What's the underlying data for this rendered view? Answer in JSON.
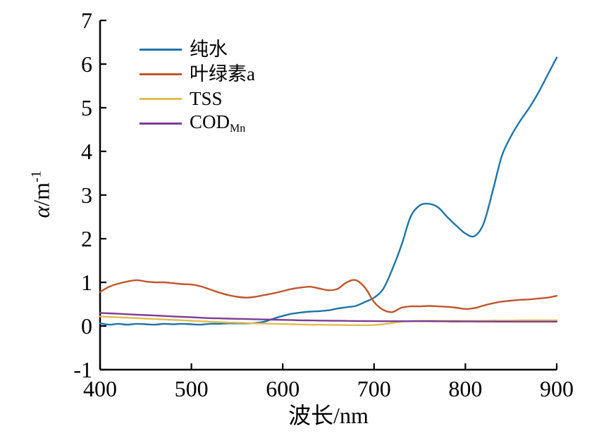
{
  "figure": {
    "background": "#ffffff",
    "axis_color": "#000000"
  },
  "axes": {
    "x_title": "波长/nm",
    "y_title_symbol": "α",
    "y_title_unit": "/m",
    "y_title_exponent": "-1"
  },
  "chart_data": {
    "type": "line",
    "title": "",
    "xlabel": "波长/nm",
    "ylabel": "α/m⁻¹",
    "xlim": [
      400,
      900
    ],
    "ylim": [
      -1,
      7
    ],
    "x_ticks": [
      400,
      500,
      600,
      700,
      800,
      900
    ],
    "y_ticks": [
      -1,
      0,
      1,
      2,
      3,
      4,
      5,
      6,
      7
    ],
    "grid": false,
    "legend_position": "upper-left-inside",
    "x": [
      400,
      410,
      420,
      430,
      440,
      450,
      460,
      470,
      480,
      490,
      500,
      510,
      520,
      530,
      540,
      550,
      560,
      570,
      580,
      590,
      600,
      610,
      620,
      630,
      640,
      650,
      660,
      670,
      680,
      690,
      700,
      710,
      720,
      730,
      740,
      750,
      760,
      770,
      780,
      790,
      800,
      810,
      820,
      830,
      840,
      850,
      860,
      870,
      880,
      890,
      900
    ],
    "series": [
      {
        "id": "pure-water",
        "name": "纯水",
        "color": "#1F74A6",
        "values": [
          0.06,
          0.03,
          0.05,
          0.03,
          0.05,
          0.04,
          0.03,
          0.05,
          0.04,
          0.05,
          0.04,
          0.03,
          0.05,
          0.05,
          0.06,
          0.06,
          0.06,
          0.07,
          0.1,
          0.17,
          0.23,
          0.28,
          0.31,
          0.33,
          0.34,
          0.36,
          0.4,
          0.43,
          0.46,
          0.55,
          0.65,
          0.85,
          1.3,
          1.85,
          2.5,
          2.76,
          2.8,
          2.72,
          2.5,
          2.3,
          2.12,
          2.06,
          2.35,
          3.1,
          3.9,
          4.35,
          4.7,
          5.0,
          5.35,
          5.75,
          6.15
        ]
      },
      {
        "id": "chlorophyll-a",
        "name": "叶绿素a",
        "color": "#C0552B",
        "values": [
          0.78,
          0.9,
          0.97,
          1.02,
          1.05,
          1.02,
          1.0,
          1.0,
          0.98,
          0.96,
          0.95,
          0.91,
          0.84,
          0.77,
          0.71,
          0.67,
          0.65,
          0.67,
          0.71,
          0.75,
          0.8,
          0.85,
          0.88,
          0.9,
          0.86,
          0.82,
          0.85,
          1.0,
          1.05,
          0.88,
          0.55,
          0.37,
          0.32,
          0.42,
          0.45,
          0.45,
          0.46,
          0.45,
          0.44,
          0.42,
          0.39,
          0.41,
          0.47,
          0.52,
          0.56,
          0.58,
          0.6,
          0.61,
          0.63,
          0.65,
          0.69
        ]
      },
      {
        "id": "tss",
        "name": "TSS",
        "color": "#E0BC4F",
        "values": [
          0.22,
          0.21,
          0.2,
          0.19,
          0.18,
          0.17,
          0.16,
          0.15,
          0.14,
          0.13,
          0.12,
          0.11,
          0.1,
          0.09,
          0.08,
          0.075,
          0.07,
          0.06,
          0.055,
          0.05,
          0.045,
          0.04,
          0.035,
          0.03,
          0.03,
          0.025,
          0.025,
          0.02,
          0.02,
          0.02,
          0.025,
          0.04,
          0.07,
          0.1,
          0.115,
          0.12,
          0.12,
          0.12,
          0.12,
          0.12,
          0.12,
          0.12,
          0.12,
          0.125,
          0.125,
          0.125,
          0.13,
          0.13,
          0.13,
          0.13,
          0.13
        ]
      },
      {
        "id": "cod-mn",
        "name": "COD",
        "name_sub": "Mn",
        "color": "#7C3D96",
        "values": [
          0.3,
          0.29,
          0.28,
          0.27,
          0.26,
          0.25,
          0.24,
          0.23,
          0.22,
          0.21,
          0.2,
          0.19,
          0.18,
          0.175,
          0.17,
          0.165,
          0.16,
          0.155,
          0.15,
          0.145,
          0.14,
          0.135,
          0.13,
          0.128,
          0.125,
          0.122,
          0.12,
          0.118,
          0.115,
          0.113,
          0.112,
          0.11,
          0.11,
          0.11,
          0.11,
          0.11,
          0.11,
          0.108,
          0.106,
          0.105,
          0.104,
          0.103,
          0.102,
          0.101,
          0.1,
          0.1,
          0.1,
          0.1,
          0.1,
          0.1,
          0.1
        ]
      }
    ]
  }
}
